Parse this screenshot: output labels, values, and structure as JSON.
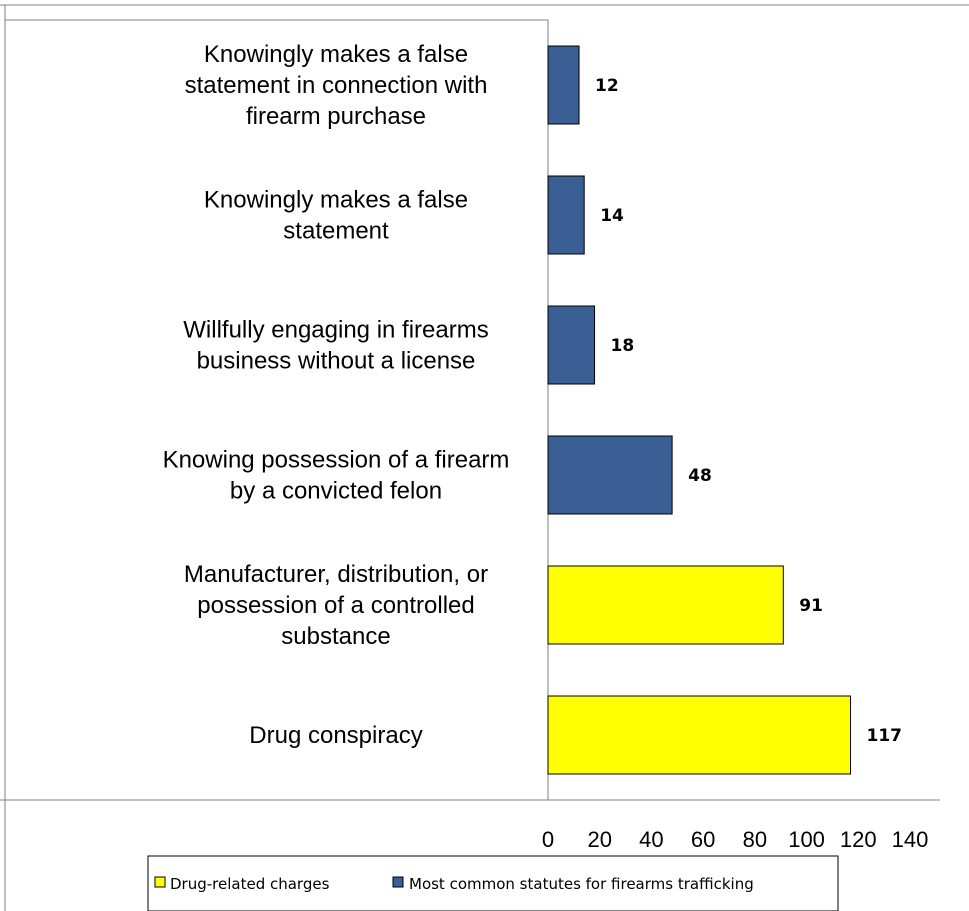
{
  "chart_data": {
    "type": "bar",
    "orientation": "horizontal",
    "categories": [
      [
        "Knowingly makes a false",
        "statement in connection with",
        "firearm purchase"
      ],
      [
        "Knowingly makes a false",
        "statement"
      ],
      [
        "Willfully engaging in firearms",
        "business without a license"
      ],
      [
        "Knowing possession of a firearm",
        "by a convicted felon"
      ],
      [
        "Manufacturer, distribution, or",
        "possession of a controlled",
        "substance"
      ],
      [
        "Drug conspiracy"
      ]
    ],
    "values": [
      12,
      14,
      18,
      48,
      91,
      117
    ],
    "series_index": [
      1,
      1,
      1,
      1,
      0,
      0
    ],
    "series": [
      {
        "name": "Drug-related charges",
        "color": "#ffff00"
      },
      {
        "name": "Most common statutes for firearms trafficking",
        "color": "#3a5f95"
      }
    ],
    "xlim": [
      0,
      140
    ],
    "xticks": [
      "0",
      "20",
      "40",
      "60",
      "80",
      "100",
      "120",
      "140"
    ],
    "title": "",
    "xlabel": "",
    "ylabel": "",
    "legend_position": "bottom",
    "grid": false
  }
}
